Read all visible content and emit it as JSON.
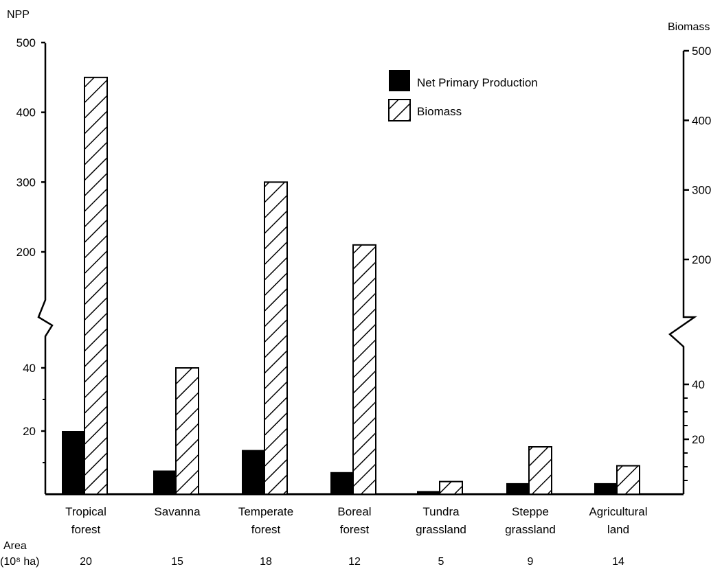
{
  "chart_data": {
    "type": "bar",
    "left_axis_label": "NPP",
    "right_axis_label": "Biomass",
    "categories": [
      [
        "Tropical",
        "forest"
      ],
      [
        "Savanna"
      ],
      [
        "Temperate",
        "forest"
      ],
      [
        "Boreal",
        "forest"
      ],
      [
        "Tundra",
        "grassland"
      ],
      [
        "Steppe",
        "grassland"
      ],
      [
        "Agricultural",
        "land"
      ]
    ],
    "series": [
      {
        "name": "Net Primary Production",
        "fill": "solid",
        "color": "#000000",
        "values": [
          20,
          7.5,
          14,
          7,
          1,
          3.5,
          3.5
        ]
      },
      {
        "name": "Biomass",
        "fill": "hatched",
        "color": "#000000",
        "values": [
          450,
          40,
          300,
          210,
          4,
          15,
          9
        ]
      }
    ],
    "axis_break": {
      "below": 40,
      "above": 200
    },
    "left_ticks": [
      "500",
      "400",
      "300",
      "200",
      "40",
      "20"
    ],
    "right_ticks": [
      "500",
      "400",
      "300",
      "200",
      "40",
      "20"
    ],
    "area_label": [
      "Area",
      "(10⁸ ha)"
    ],
    "area_values": [
      "20",
      "15",
      "18",
      "12",
      "5",
      "9",
      "14"
    ],
    "grid": false,
    "legend_position": "top-right"
  }
}
